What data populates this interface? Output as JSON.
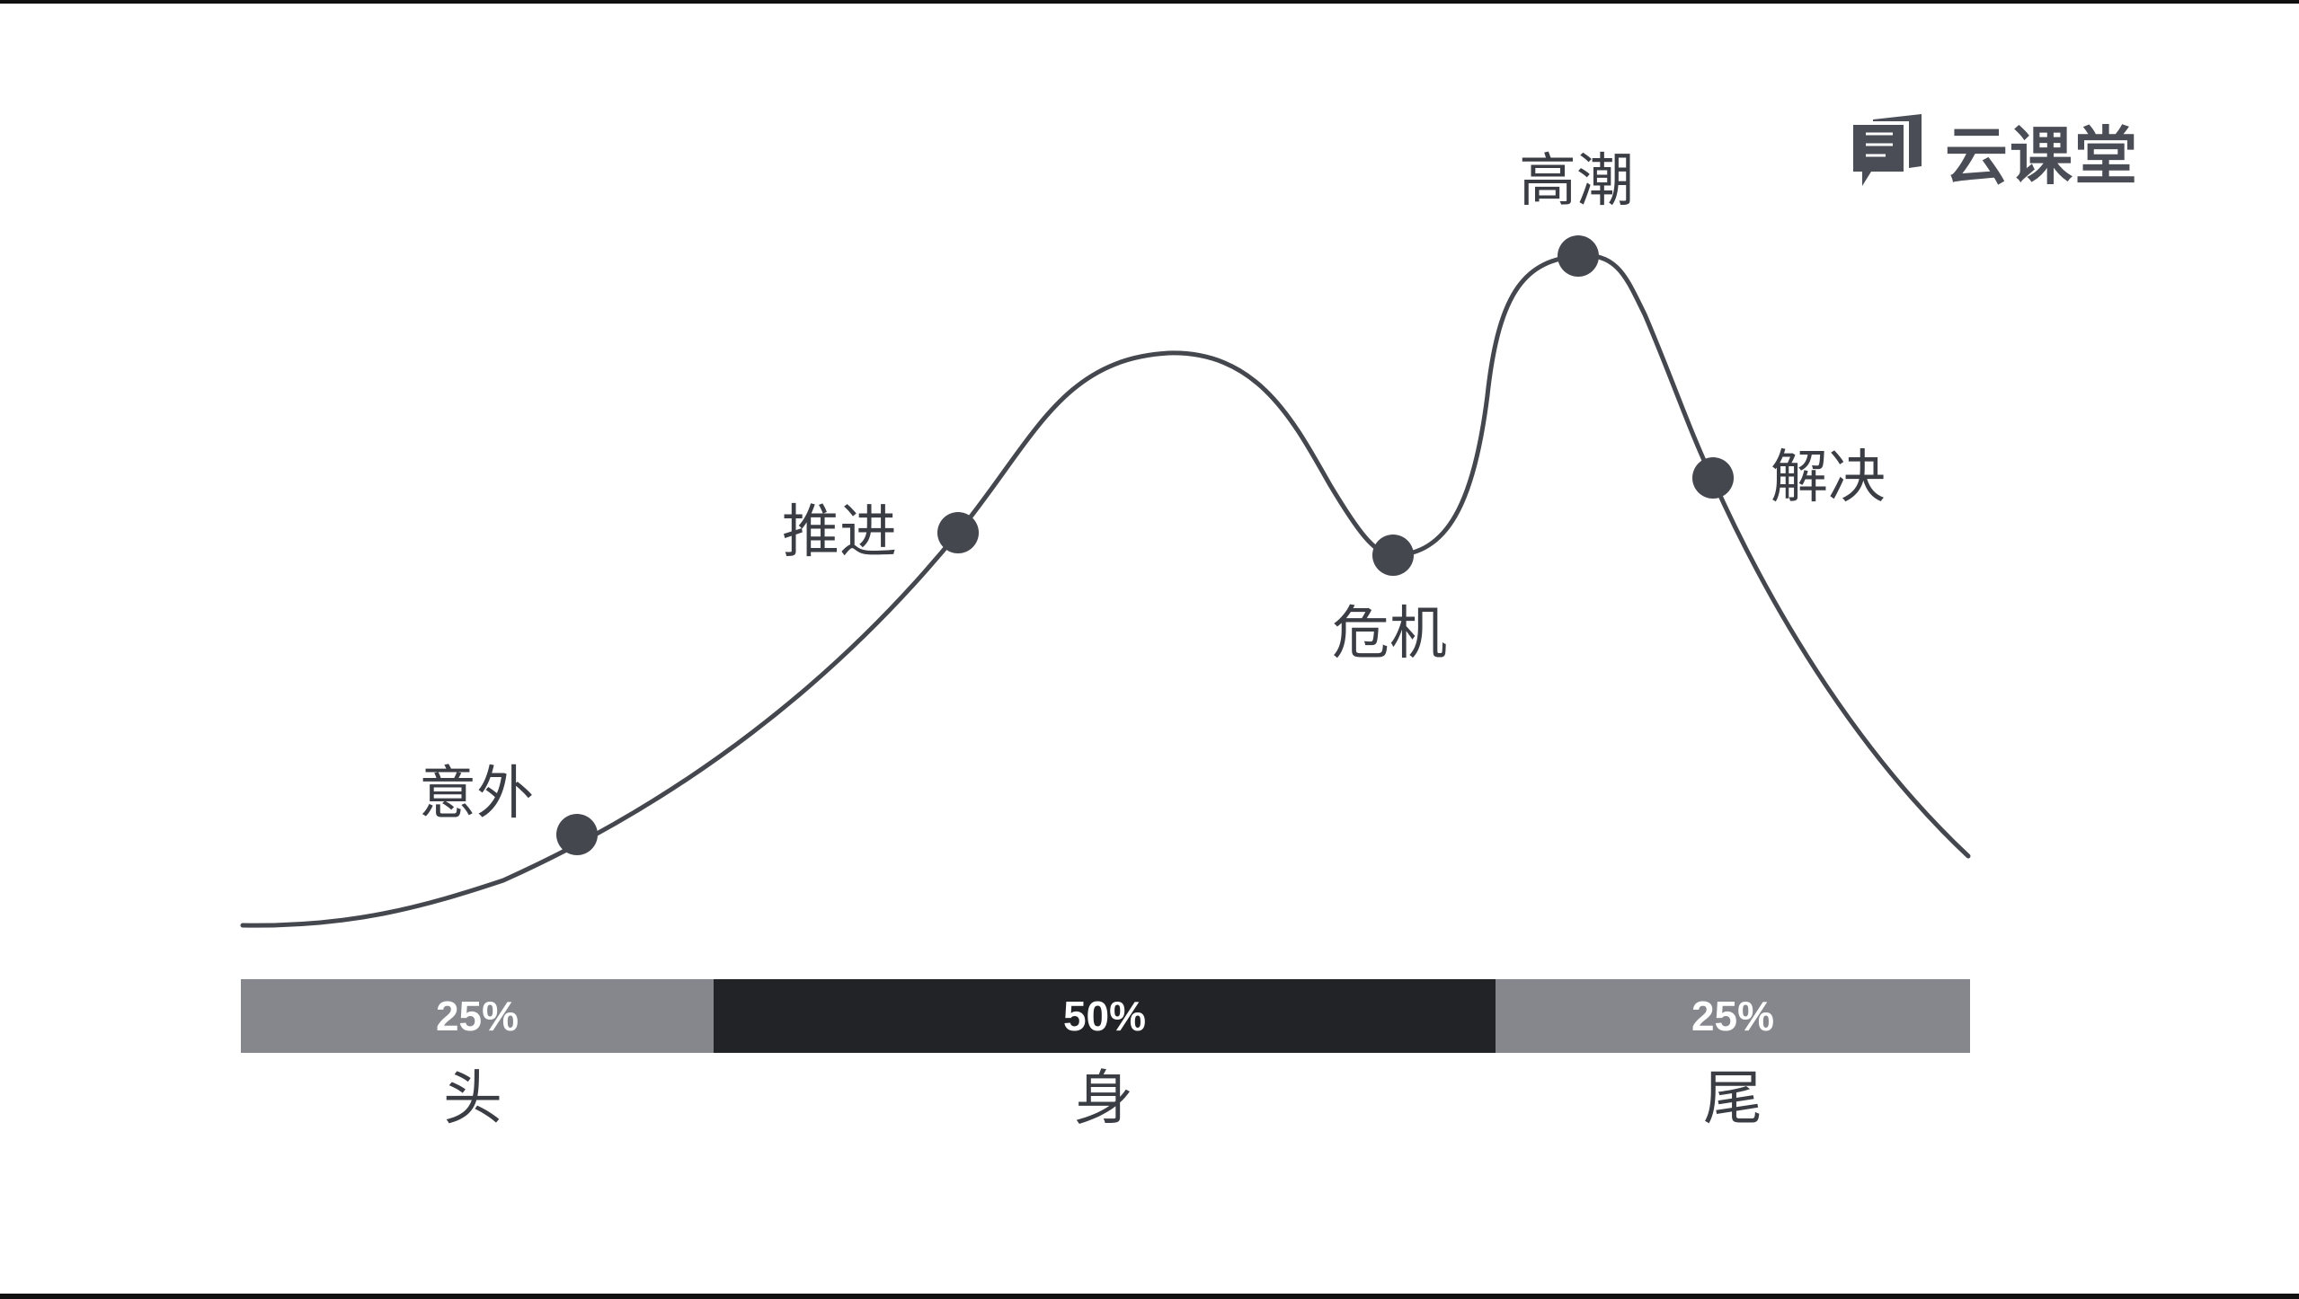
{
  "logo": {
    "icon": "speech-book-icon",
    "text": "云课堂"
  },
  "curve": {
    "color": "#45474f",
    "point_color": "#45474f"
  },
  "points": {
    "accident": "意外",
    "progress": "推进",
    "crisis": "危机",
    "climax": "高潮",
    "resolution": "解决"
  },
  "bars": {
    "head": {
      "label": "25%",
      "value": 25,
      "color": "#85878d"
    },
    "body": {
      "label": "50%",
      "value": 50,
      "color": "#222327"
    },
    "tail": {
      "label": "25%",
      "value": 25,
      "color": "#85878d"
    }
  },
  "sections": {
    "head": "头",
    "body": "身",
    "tail": "尾"
  }
}
